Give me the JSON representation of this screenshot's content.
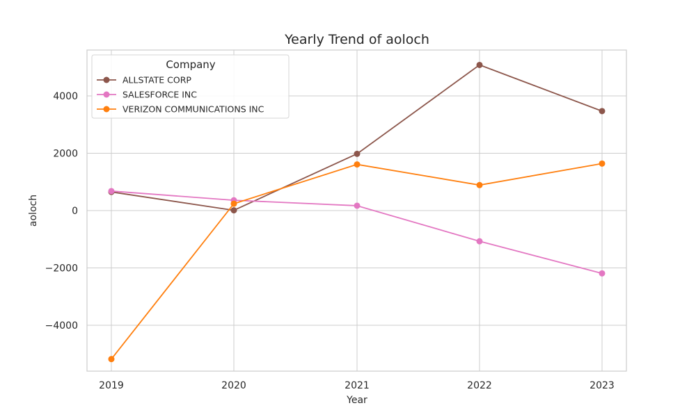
{
  "chart_data": {
    "type": "line",
    "title": "Yearly Trend of aoloch",
    "xlabel": "Year",
    "ylabel": "aoloch",
    "x": [
      "2019",
      "2020",
      "2021",
      "2022",
      "2023"
    ],
    "ylim": [
      -5600,
      5600
    ],
    "yticks": [
      -4000,
      -2000,
      0,
      2000,
      4000
    ],
    "ytick_labels": [
      "−4000",
      "−2000",
      "0",
      "2000",
      "4000"
    ],
    "grid": true,
    "legend": {
      "title": "Company",
      "placement": "top-left"
    },
    "series": [
      {
        "name": "ALLSTATE CORP",
        "color": "#8c564b",
        "values": [
          650,
          10,
          1980,
          5080,
          3470
        ]
      },
      {
        "name": "SALESFORCE INC",
        "color": "#e377c2",
        "values": [
          680,
          360,
          170,
          -1070,
          -2190
        ]
      },
      {
        "name": "VERIZON COMMUNICATIONS INC",
        "color": "#ff7f0e",
        "values": [
          -5180,
          240,
          1610,
          890,
          1640
        ]
      }
    ]
  }
}
